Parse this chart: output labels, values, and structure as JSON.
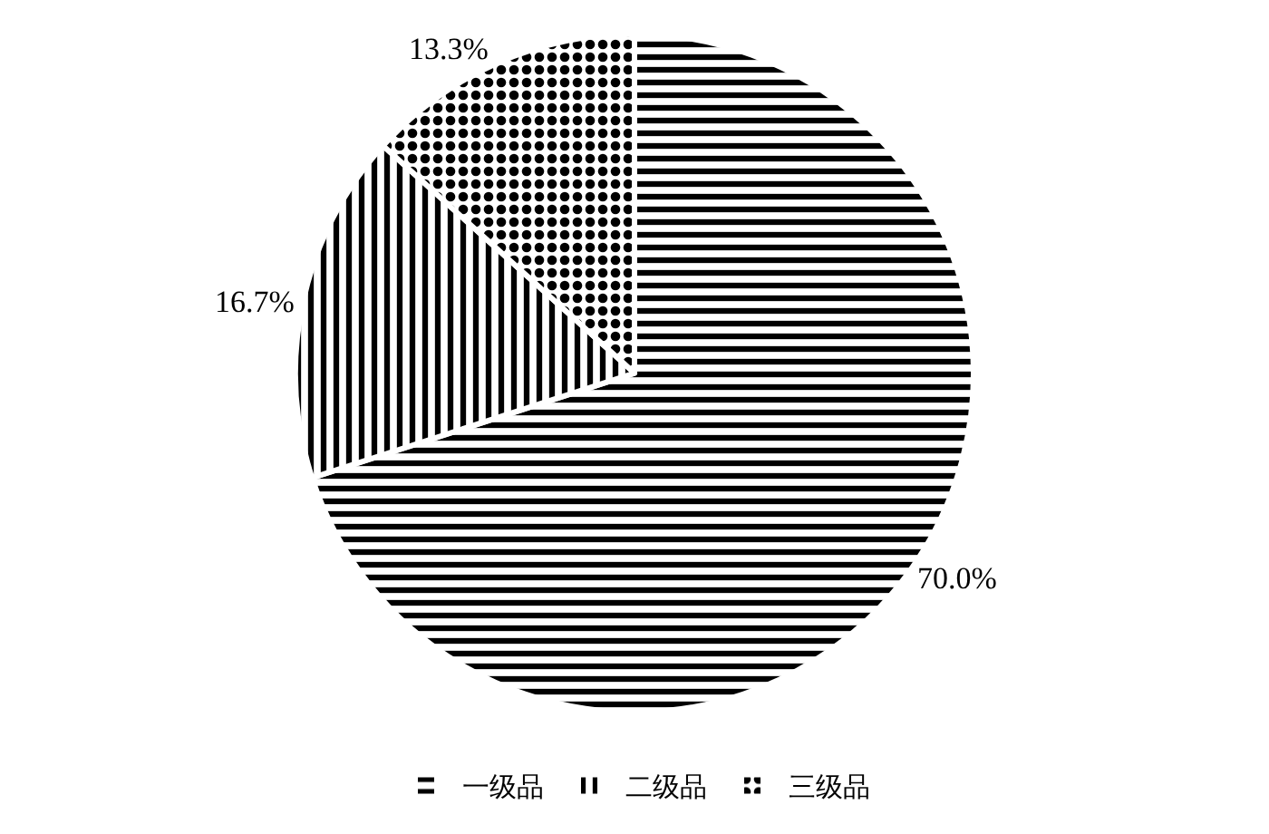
{
  "chart_data": {
    "type": "pie",
    "categories": [
      "一级品",
      "二级品",
      "三级品"
    ],
    "values": [
      70.0,
      16.7,
      13.3
    ],
    "value_labels": [
      "70.0%",
      "16.7%",
      "13.3%"
    ],
    "legend": "bottom"
  }
}
